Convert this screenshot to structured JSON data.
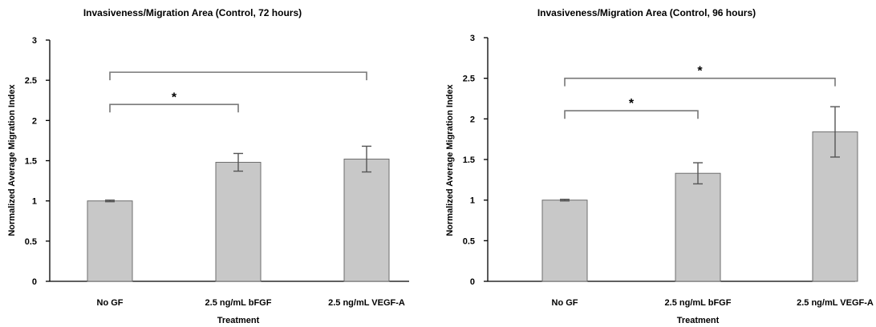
{
  "chart_data": [
    {
      "type": "bar",
      "title": "Invasiveness/Migration Area (Control, 72 hours)",
      "xlabel": "Treatment",
      "ylabel": "Normalized Average Migration Index",
      "ylim": [
        0,
        3
      ],
      "yticks": [
        "0",
        "0.5",
        "1",
        "1.5",
        "2",
        "2.5",
        "3"
      ],
      "categories": [
        "No GF",
        "2.5 ng/mL bFGF",
        "2.5 ng/mL VEGF-A"
      ],
      "values": [
        1.0,
        1.48,
        1.52
      ],
      "errors": [
        0.01,
        0.11,
        0.16
      ],
      "bar_color": "#c8c8c8",
      "grid": false,
      "significance": [
        {
          "from": 0,
          "to": 1,
          "label": "*",
          "y": 2.2
        },
        {
          "from": 0,
          "to": 2,
          "label": "",
          "y": 2.6
        }
      ]
    },
    {
      "type": "bar",
      "title": "Invasiveness/Migration Area (Control, 96 hours)",
      "xlabel": "Treatment",
      "ylabel": "Normalized Average Migration Index",
      "ylim": [
        0,
        3
      ],
      "yticks": [
        "0",
        "0.5",
        "1",
        "1.5",
        "2",
        "2.5",
        "3"
      ],
      "categories": [
        "No GF",
        "2.5 ng/mL bFGF",
        "2.5 ng/mL VEGF-A"
      ],
      "values": [
        1.0,
        1.33,
        1.84
      ],
      "errors": [
        0.01,
        0.13,
        0.31
      ],
      "bar_color": "#c8c8c8",
      "grid": false,
      "significance": [
        {
          "from": 0,
          "to": 1,
          "label": "*",
          "y": 2.1
        },
        {
          "from": 0,
          "to": 2,
          "label": "*",
          "y": 2.5
        }
      ]
    }
  ]
}
